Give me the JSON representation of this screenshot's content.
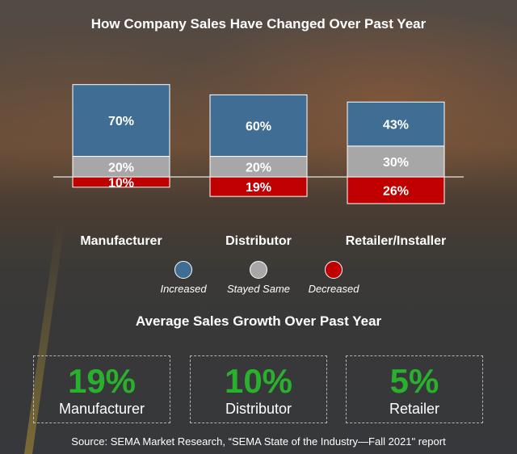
{
  "title": "How Company Sales Have Changed Over Past Year",
  "chart_data": {
    "type": "bar",
    "stacked": true,
    "title": "How Company Sales Have Changed Over Past Year",
    "categories": [
      "Manufacturer",
      "Distributor",
      "Retailer/Installer"
    ],
    "series": [
      {
        "name": "Increased",
        "values": [
          70,
          60,
          43
        ],
        "labels": [
          "70%",
          "60%",
          "43%"
        ],
        "color": "#3f6d93"
      },
      {
        "name": "Stayed Same",
        "values": [
          20,
          20,
          30
        ],
        "labels": [
          "20%",
          "20%",
          "30%"
        ],
        "color": "#a7a7a7"
      },
      {
        "name": "Decreased",
        "values": [
          10,
          19,
          26
        ],
        "labels": [
          "10%",
          "19%",
          "26%"
        ],
        "color": "#c00000"
      }
    ],
    "baseline_note": "Increased and Stayed Same stack above a zero line; Decreased extends below it",
    "legend_position": "bottom"
  },
  "legend": [
    {
      "label": "Increased",
      "color": "#3f6d93"
    },
    {
      "label": "Stayed Same",
      "color": "#a7a7a7"
    },
    {
      "label": "Decreased",
      "color": "#c00000"
    }
  ],
  "subtitle": "Average Sales Growth Over Past Year",
  "stats": [
    {
      "value": "19%",
      "label": "Manufacturer"
    },
    {
      "value": "10%",
      "label": "Distributor"
    },
    {
      "value": "5%",
      "label": "Retailer"
    }
  ],
  "stat_color": "#29b12e",
  "source": "Source: SEMA Market Research, “SEMA State of the Industry—Fall 2021\" report"
}
